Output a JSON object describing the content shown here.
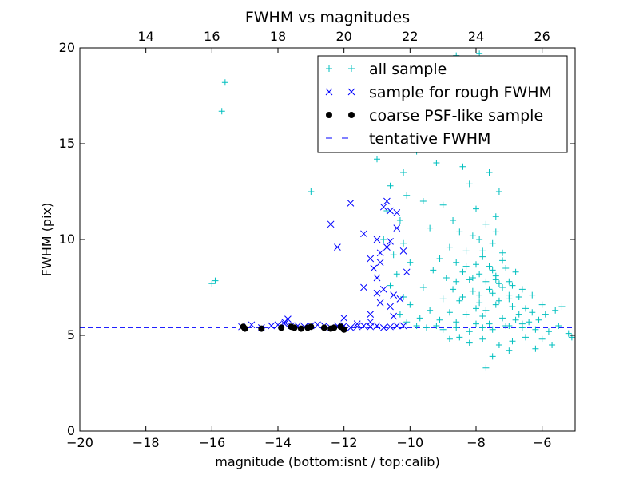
{
  "chart_data": {
    "type": "scatter",
    "title": "FWHM vs magnitudes",
    "xlabel": "magnitude (bottom:isnt / top:calib)",
    "ylabel": "FWHM (pix)",
    "xlim": [
      -20,
      -5
    ],
    "ylim": [
      0,
      20
    ],
    "x_ticks": [
      "−20",
      "−18",
      "−16",
      "−14",
      "−12",
      "−10",
      "−8",
      "−6"
    ],
    "y_ticks": [
      "0",
      "5",
      "10",
      "15",
      "20"
    ],
    "top_axis": {
      "offset": 32,
      "ticks": [
        "14",
        "16",
        "18",
        "20",
        "22",
        "24",
        "26"
      ]
    },
    "legend_position": "top-right",
    "grid": false,
    "colors": {
      "all_sample": "#00bfbf",
      "rough": "#0000ff",
      "coarse": "#000000",
      "fwhm_line": "#0000ff"
    },
    "series": [
      {
        "name": "all sample",
        "marker": "plus",
        "points": [
          [
            -15.6,
            18.2
          ],
          [
            -15.7,
            16.7
          ],
          [
            -16.0,
            7.7
          ],
          [
            -15.9,
            7.85
          ],
          [
            -13.0,
            12.5
          ],
          [
            -11.0,
            14.2
          ],
          [
            -10.4,
            14.8
          ],
          [
            -10.2,
            13.5
          ],
          [
            -10.6,
            12.8
          ],
          [
            -10.1,
            12.3
          ],
          [
            -10.7,
            11.5
          ],
          [
            -10.3,
            11.0
          ],
          [
            -10.8,
            10.0
          ],
          [
            -10.2,
            9.8
          ],
          [
            -10.5,
            9.2
          ],
          [
            -10.0,
            8.8
          ],
          [
            -10.4,
            8.2
          ],
          [
            -10.6,
            7.6
          ],
          [
            -10.2,
            7.0
          ],
          [
            -10.0,
            6.6
          ],
          [
            -10.3,
            6.1
          ],
          [
            -10.1,
            5.7
          ],
          [
            -9.8,
            5.5
          ],
          [
            -9.5,
            5.4
          ],
          [
            -9.2,
            5.5
          ],
          [
            -9.0,
            5.3
          ],
          [
            -8.6,
            5.4
          ],
          [
            -8.2,
            5.2
          ],
          [
            -7.8,
            5.4
          ],
          [
            -7.5,
            5.3
          ],
          [
            -7.0,
            5.5
          ],
          [
            -6.6,
            5.4
          ],
          [
            -6.2,
            5.3
          ],
          [
            -5.8,
            5.2
          ],
          [
            -5.5,
            5.5
          ],
          [
            -5.2,
            5.1
          ],
          [
            -8.6,
            19.6
          ],
          [
            -7.9,
            19.7
          ],
          [
            -8.3,
            19.2
          ],
          [
            -7.8,
            18.8
          ],
          [
            -8.9,
            18.5
          ],
          [
            -9.8,
            14.6
          ],
          [
            -9.2,
            14.0
          ],
          [
            -8.4,
            13.8
          ],
          [
            -7.6,
            13.5
          ],
          [
            -7.3,
            12.5
          ],
          [
            -8.2,
            12.9
          ],
          [
            -9.6,
            12.0
          ],
          [
            -9.0,
            11.8
          ],
          [
            -8.0,
            11.6
          ],
          [
            -7.4,
            11.2
          ],
          [
            -8.7,
            11.0
          ],
          [
            -7.7,
            10.8
          ],
          [
            -9.4,
            10.6
          ],
          [
            -8.5,
            10.4
          ],
          [
            -8.1,
            10.2
          ],
          [
            -7.9,
            10.0
          ],
          [
            -7.5,
            9.8
          ],
          [
            -8.8,
            9.6
          ],
          [
            -8.3,
            9.4
          ],
          [
            -7.2,
            9.3
          ],
          [
            -7.8,
            9.1
          ],
          [
            -9.1,
            9.0
          ],
          [
            -8.6,
            8.8
          ],
          [
            -8.0,
            8.7
          ],
          [
            -7.6,
            8.6
          ],
          [
            -7.1,
            8.5
          ],
          [
            -9.3,
            8.4
          ],
          [
            -8.4,
            8.3
          ],
          [
            -7.9,
            8.2
          ],
          [
            -7.4,
            8.1
          ],
          [
            -8.9,
            8.0
          ],
          [
            -8.2,
            7.9
          ],
          [
            -7.7,
            7.8
          ],
          [
            -7.3,
            7.7
          ],
          [
            -6.9,
            7.6
          ],
          [
            -9.6,
            7.5
          ],
          [
            -8.7,
            7.4
          ],
          [
            -8.1,
            7.3
          ],
          [
            -7.5,
            7.2
          ],
          [
            -7.0,
            7.1
          ],
          [
            -6.7,
            7.0
          ],
          [
            -9.0,
            6.9
          ],
          [
            -8.5,
            6.8
          ],
          [
            -7.9,
            6.7
          ],
          [
            -7.4,
            6.6
          ],
          [
            -6.9,
            6.5
          ],
          [
            -6.5,
            6.4
          ],
          [
            -9.4,
            6.3
          ],
          [
            -8.8,
            6.2
          ],
          [
            -8.3,
            6.1
          ],
          [
            -7.8,
            6.0
          ],
          [
            -7.2,
            5.9
          ],
          [
            -6.8,
            5.8
          ],
          [
            -6.4,
            5.7
          ],
          [
            -9.7,
            5.9
          ],
          [
            -9.1,
            5.8
          ],
          [
            -8.6,
            5.7
          ],
          [
            -8.0,
            5.6
          ],
          [
            -7.6,
            5.6
          ],
          [
            -7.1,
            5.5
          ],
          [
            -6.6,
            5.6
          ],
          [
            -6.1,
            5.8
          ],
          [
            -5.9,
            6.1
          ],
          [
            -5.6,
            6.3
          ],
          [
            -5.4,
            6.5
          ],
          [
            -6.3,
            6.2
          ],
          [
            -6.0,
            6.6
          ],
          [
            -6.5,
            4.9
          ],
          [
            -6.9,
            4.7
          ],
          [
            -7.3,
            4.5
          ],
          [
            -7.8,
            4.8
          ],
          [
            -8.2,
            4.6
          ],
          [
            -8.5,
            4.9
          ],
          [
            -7.0,
            4.2
          ],
          [
            -7.5,
            3.9
          ],
          [
            -7.7,
            3.3
          ],
          [
            -6.2,
            4.3
          ],
          [
            -5.7,
            4.5
          ],
          [
            -5.1,
            4.9
          ],
          [
            -6.0,
            4.8
          ],
          [
            -8.8,
            4.8
          ],
          [
            -7.4,
            10.4
          ],
          [
            -7.2,
            8.9
          ],
          [
            -6.8,
            8.3
          ],
          [
            -6.6,
            7.4
          ],
          [
            -7.0,
            6.9
          ],
          [
            -6.3,
            7.1
          ],
          [
            -6.7,
            6.1
          ],
          [
            -8.4,
            7.0
          ],
          [
            -8.0,
            6.4
          ],
          [
            -7.7,
            6.3
          ],
          [
            -7.3,
            6.8
          ],
          [
            -7.6,
            7.4
          ],
          [
            -8.1,
            8.0
          ],
          [
            -7.5,
            8.4
          ],
          [
            -7.8,
            9.4
          ],
          [
            -8.3,
            8.6
          ],
          [
            -7.4,
            7.9
          ],
          [
            -7.9,
            7.1
          ],
          [
            -8.6,
            7.8
          ],
          [
            -7.2,
            7.5
          ],
          [
            -7.0,
            7.8
          ]
        ]
      },
      {
        "name": "sample for rough FWHM",
        "marker": "x",
        "points": [
          [
            -15.1,
            5.45
          ],
          [
            -14.8,
            5.55
          ],
          [
            -14.5,
            5.4
          ],
          [
            -14.2,
            5.5
          ],
          [
            -14.0,
            5.55
          ],
          [
            -13.8,
            5.6
          ],
          [
            -13.6,
            5.5
          ],
          [
            -13.4,
            5.5
          ],
          [
            -13.2,
            5.45
          ],
          [
            -13.0,
            5.5
          ],
          [
            -12.8,
            5.55
          ],
          [
            -12.6,
            5.5
          ],
          [
            -12.4,
            5.4
          ],
          [
            -12.2,
            5.5
          ],
          [
            -12.0,
            5.5
          ],
          [
            -11.8,
            5.4
          ],
          [
            -11.6,
            5.45
          ],
          [
            -11.4,
            5.5
          ],
          [
            -11.2,
            5.45
          ],
          [
            -11.0,
            5.5
          ],
          [
            -10.8,
            5.4
          ],
          [
            -10.6,
            5.45
          ],
          [
            -10.4,
            5.5
          ],
          [
            -10.2,
            5.5
          ],
          [
            -12.0,
            5.9
          ],
          [
            -11.6,
            5.6
          ],
          [
            -11.2,
            5.7
          ],
          [
            -13.8,
            5.7
          ],
          [
            -13.7,
            5.85
          ],
          [
            -12.4,
            10.8
          ],
          [
            -12.2,
            9.6
          ],
          [
            -11.8,
            11.9
          ],
          [
            -11.4,
            10.3
          ],
          [
            -11.0,
            10.0
          ],
          [
            -10.8,
            11.7
          ],
          [
            -10.7,
            12.0
          ],
          [
            -10.6,
            11.5
          ],
          [
            -10.4,
            10.6
          ],
          [
            -10.2,
            9.4
          ],
          [
            -11.2,
            9.0
          ],
          [
            -11.1,
            8.5
          ],
          [
            -10.9,
            8.8
          ],
          [
            -10.7,
            9.6
          ],
          [
            -10.6,
            9.9
          ],
          [
            -11.0,
            8.0
          ],
          [
            -10.8,
            7.4
          ],
          [
            -10.5,
            7.1
          ],
          [
            -10.6,
            6.5
          ],
          [
            -11.4,
            7.5
          ],
          [
            -10.9,
            6.7
          ],
          [
            -11.2,
            6.1
          ],
          [
            -10.3,
            6.9
          ],
          [
            -10.1,
            8.3
          ],
          [
            -11.0,
            7.2
          ],
          [
            -10.5,
            6.0
          ],
          [
            -10.9,
            9.3
          ],
          [
            -10.4,
            11.4
          ]
        ]
      },
      {
        "name": "coarse PSF-like sample",
        "marker": "circle",
        "points": [
          [
            -15.0,
            5.35
          ],
          [
            -15.05,
            5.45
          ],
          [
            -14.5,
            5.35
          ],
          [
            -13.9,
            5.4
          ],
          [
            -13.6,
            5.45
          ],
          [
            -13.5,
            5.4
          ],
          [
            -13.3,
            5.35
          ],
          [
            -13.1,
            5.4
          ],
          [
            -13.0,
            5.45
          ],
          [
            -12.6,
            5.4
          ],
          [
            -12.4,
            5.35
          ],
          [
            -12.3,
            5.4
          ],
          [
            -12.1,
            5.45
          ],
          [
            -12.0,
            5.3
          ]
        ]
      }
    ],
    "tentative_fwhm": {
      "name": "tentative FWHM",
      "y": 5.4
    }
  }
}
